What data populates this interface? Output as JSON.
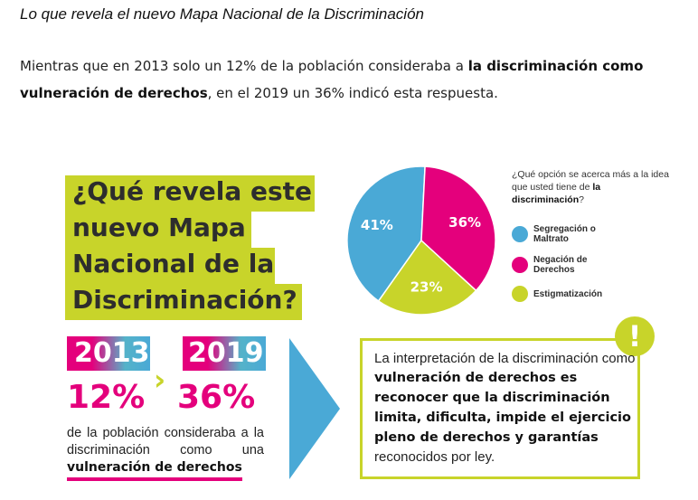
{
  "article": {
    "title": "Lo que revela el nuevo Mapa Nacional de la Discriminación",
    "lead_1": "Mientras que en 2013 solo un 12% de la población consideraba a ",
    "lead_bold": "la discriminación como vulneración de derechos",
    "lead_2": ", en el 2019 un 36% indicó esta respuesta."
  },
  "infographic": {
    "question_lines": [
      "¿Qué revela este",
      "nuevo Mapa",
      "Nacional de la",
      "Discriminación?"
    ],
    "pie_question_1": "¿Qué opción se acerca más a la idea que usted tiene de ",
    "pie_question_bold": "la discriminación",
    "pie_question_2": "?",
    "legend": [
      {
        "label": "Segregación o Maltrato",
        "color": "#4aa9d6"
      },
      {
        "label": "Negación de Derechos",
        "color": "#e4007c"
      },
      {
        "label": "Estigmatización",
        "color": "#c8d42a"
      }
    ],
    "year_from": "2013",
    "year_to": "2019",
    "pct_from": "12%",
    "pct_to": "36%",
    "pop_text": "de la población consideraba a la discriminación como una",
    "pop_strong": "vulneración de derechos",
    "info_1": "La interpretación de la discriminación como ",
    "info_bold": "vulneración de derechos es reconocer que la discriminación limita, dificulta, impide el ejercicio pleno de derechos y garantías",
    "info_2": " reconocidos por ley.",
    "exclamation": "!"
  },
  "chart_data": {
    "type": "pie",
    "categories": [
      "Segregación o Maltrato",
      "Negación de Derechos",
      "Estigmatización"
    ],
    "values": [
      41,
      36,
      23
    ],
    "labels": [
      "41%",
      "36%",
      "23%"
    ],
    "colors": [
      "#4aa9d6",
      "#e4007c",
      "#c8d42a"
    ]
  }
}
